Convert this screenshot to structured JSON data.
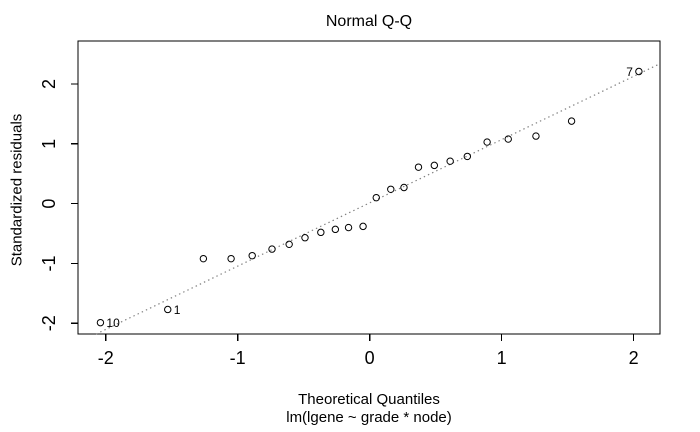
{
  "chart_data": {
    "type": "scatter",
    "title": "Normal Q-Q",
    "xlabel": "Theoretical Quantiles",
    "ylabel": "Standardized residuals",
    "subtitle": "lm(lgene ~ grade * node)",
    "xlim": [
      -2.21,
      2.2
    ],
    "ylim": [
      -2.18,
      2.72
    ],
    "xticks": [
      -2,
      -1,
      0,
      1,
      2
    ],
    "yticks": [
      -2,
      -1,
      0,
      1,
      2
    ],
    "grid": false,
    "legend": "none",
    "marker": "open-circle",
    "marker_color": "#000000",
    "box_color": "#000000",
    "refline": {
      "kind": "qqline",
      "slope": 1.058,
      "intercept": 0.013,
      "color": "#7f7f7f",
      "style": "dotted"
    },
    "points": [
      {
        "x": -2.04,
        "y": -1.99,
        "label": "10",
        "label_side": "right"
      },
      {
        "x": -1.53,
        "y": -1.77,
        "label": "1",
        "label_side": "right"
      },
      {
        "x": -1.26,
        "y": -0.92
      },
      {
        "x": -1.05,
        "y": -0.92
      },
      {
        "x": -0.89,
        "y": -0.87
      },
      {
        "x": -0.74,
        "y": -0.76
      },
      {
        "x": -0.61,
        "y": -0.68
      },
      {
        "x": -0.49,
        "y": -0.57
      },
      {
        "x": -0.37,
        "y": -0.48
      },
      {
        "x": -0.26,
        "y": -0.43
      },
      {
        "x": -0.16,
        "y": -0.4
      },
      {
        "x": -0.05,
        "y": -0.38
      },
      {
        "x": 0.05,
        "y": 0.1
      },
      {
        "x": 0.16,
        "y": 0.24
      },
      {
        "x": 0.26,
        "y": 0.27
      },
      {
        "x": 0.37,
        "y": 0.61
      },
      {
        "x": 0.49,
        "y": 0.64
      },
      {
        "x": 0.61,
        "y": 0.71
      },
      {
        "x": 0.74,
        "y": 0.79
      },
      {
        "x": 0.89,
        "y": 1.03
      },
      {
        "x": 1.05,
        "y": 1.08
      },
      {
        "x": 1.26,
        "y": 1.13
      },
      {
        "x": 1.53,
        "y": 1.38
      },
      {
        "x": 2.04,
        "y": 2.21,
        "label": "7",
        "label_side": "left"
      }
    ]
  }
}
